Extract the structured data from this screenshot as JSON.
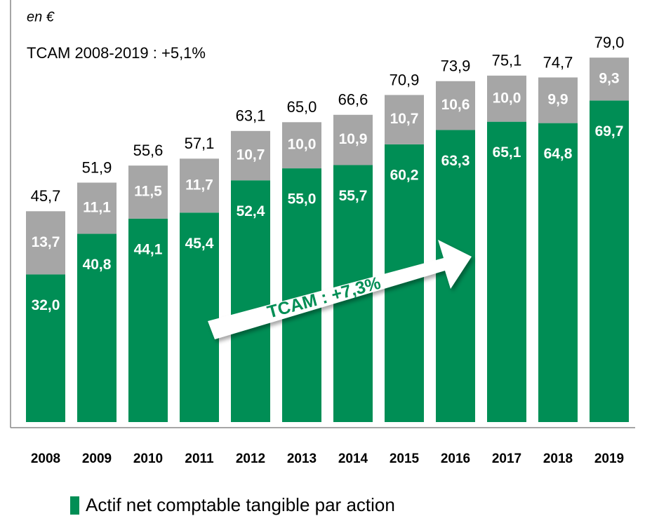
{
  "chart_data": {
    "type": "stacked_bar",
    "subtitle": "en €",
    "annotations": [
      "TCAM 2008-2019 : +5,1%",
      "TCAM : +7,3%"
    ],
    "categories": [
      "2008",
      "2009",
      "2010",
      "2011",
      "2012",
      "2013",
      "2014",
      "2015",
      "2016",
      "2017",
      "2018",
      "2019"
    ],
    "series": [
      {
        "name": "Actif net comptable tangible par action",
        "color": "#008e55",
        "values": [
          32.0,
          40.8,
          44.1,
          45.4,
          52.4,
          55.0,
          55.7,
          60.2,
          63.3,
          65.1,
          64.8,
          69.7
        ],
        "value_labels": [
          "32,0",
          "40,8",
          "44,1",
          "45,4",
          "52,4",
          "55,0",
          "55,7",
          "60,2",
          "63,3",
          "65,1",
          "64,8",
          "69,7"
        ]
      },
      {
        "color": "#a6a6a6",
        "values": [
          13.7,
          11.1,
          11.5,
          11.7,
          10.7,
          10.0,
          10.9,
          10.7,
          10.6,
          10.0,
          9.9,
          9.3
        ],
        "value_labels": [
          "13,7",
          "11,1",
          "11,5",
          "11,7",
          "10,7",
          "10,0",
          "10,9",
          "10,7",
          "10,6",
          "10,0",
          "9,9",
          "9,3"
        ]
      }
    ],
    "totals": [
      45.7,
      51.9,
      55.6,
      57.1,
      63.1,
      65.0,
      66.6,
      70.9,
      73.9,
      75.1,
      74.7,
      79.0
    ],
    "total_labels": [
      "45,7",
      "51,9",
      "55,6",
      "57,1",
      "63,1",
      "65,0",
      "66,6",
      "70,9",
      "73,9",
      "75,1",
      "74,7",
      "79,0"
    ]
  }
}
